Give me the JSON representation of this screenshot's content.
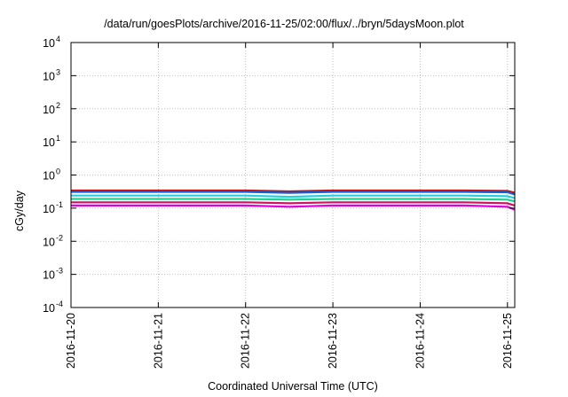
{
  "chart_data": {
    "type": "line",
    "title": "/data/run/goesPlots/archive/2016-11-25/02:00/flux/../bryn/5daysMoon.plot",
    "xlabel": "Coordinated Universal Time (UTC)",
    "ylabel": "cGy/day",
    "yscale": "log",
    "ylim": [
      0.0001,
      10000
    ],
    "xlim": [
      "2016-11-20 00:00",
      "2016-11-25 02:00"
    ],
    "grid": true,
    "x_ticks": [
      "2016-11-20",
      "2016-11-21",
      "2016-11-22",
      "2016-11-23",
      "2016-11-24",
      "2016-11-25"
    ],
    "y_ticks": [
      {
        "base": "10",
        "exp": "-4"
      },
      {
        "base": "10",
        "exp": "-3"
      },
      {
        "base": "10",
        "exp": "-2"
      },
      {
        "base": "10",
        "exp": "-1"
      },
      {
        "base": "10",
        "exp": "0"
      },
      {
        "base": "10",
        "exp": "1"
      },
      {
        "base": "10",
        "exp": "2"
      },
      {
        "base": "10",
        "exp": "3"
      },
      {
        "base": "10",
        "exp": "4"
      }
    ],
    "series": [
      {
        "color": "#e000e0",
        "x": [
          "2016-11-20 00:00",
          "2016-11-20 12:00",
          "2016-11-21 00:00",
          "2016-11-21 12:00",
          "2016-11-22 00:00",
          "2016-11-22 12:00",
          "2016-11-23 00:00",
          "2016-11-23 12:00",
          "2016-11-24 00:00",
          "2016-11-24 12:00",
          "2016-11-25 00:00",
          "2016-11-25 02:00"
        ],
        "y": [
          0.12,
          0.12,
          0.12,
          0.12,
          0.12,
          0.11,
          0.12,
          0.12,
          0.12,
          0.12,
          0.11,
          0.09
        ]
      },
      {
        "color": "#d01060",
        "x": [
          "2016-11-20 00:00",
          "2016-11-20 12:00",
          "2016-11-21 00:00",
          "2016-11-21 12:00",
          "2016-11-22 00:00",
          "2016-11-22 12:00",
          "2016-11-23 00:00",
          "2016-11-23 12:00",
          "2016-11-24 00:00",
          "2016-11-24 12:00",
          "2016-11-25 00:00",
          "2016-11-25 02:00"
        ],
        "y": [
          0.15,
          0.15,
          0.15,
          0.15,
          0.15,
          0.14,
          0.15,
          0.15,
          0.15,
          0.15,
          0.14,
          0.12
        ]
      },
      {
        "color": "#20d090",
        "x": [
          "2016-11-20 00:00",
          "2016-11-20 12:00",
          "2016-11-21 00:00",
          "2016-11-21 12:00",
          "2016-11-22 00:00",
          "2016-11-22 12:00",
          "2016-11-23 00:00",
          "2016-11-23 12:00",
          "2016-11-24 00:00",
          "2016-11-24 12:00",
          "2016-11-25 00:00",
          "2016-11-25 02:00"
        ],
        "y": [
          0.19,
          0.19,
          0.19,
          0.19,
          0.19,
          0.18,
          0.19,
          0.19,
          0.19,
          0.19,
          0.18,
          0.16
        ]
      },
      {
        "color": "#20d0e0",
        "x": [
          "2016-11-20 00:00",
          "2016-11-20 12:00",
          "2016-11-21 00:00",
          "2016-11-21 12:00",
          "2016-11-22 00:00",
          "2016-11-22 12:00",
          "2016-11-23 00:00",
          "2016-11-23 12:00",
          "2016-11-24 00:00",
          "2016-11-24 12:00",
          "2016-11-25 00:00",
          "2016-11-25 02:00"
        ],
        "y": [
          0.24,
          0.24,
          0.24,
          0.24,
          0.24,
          0.22,
          0.24,
          0.24,
          0.24,
          0.24,
          0.23,
          0.2
        ]
      },
      {
        "color": "#c01010",
        "x": [
          "2016-11-20 00:00",
          "2016-11-20 12:00",
          "2016-11-21 00:00",
          "2016-11-21 12:00",
          "2016-11-22 00:00",
          "2016-11-22 12:00",
          "2016-11-23 00:00",
          "2016-11-23 12:00",
          "2016-11-24 00:00",
          "2016-11-24 12:00",
          "2016-11-25 00:00",
          "2016-11-25 02:00"
        ],
        "y": [
          0.34,
          0.34,
          0.34,
          0.34,
          0.34,
          0.32,
          0.34,
          0.34,
          0.34,
          0.34,
          0.33,
          0.29
        ]
      },
      {
        "color": "#1560d8",
        "x": [
          "2016-11-20 00:00",
          "2016-11-20 12:00",
          "2016-11-21 00:00",
          "2016-11-21 12:00",
          "2016-11-22 00:00",
          "2016-11-22 12:00",
          "2016-11-23 00:00",
          "2016-11-23 12:00",
          "2016-11-24 00:00",
          "2016-11-24 12:00",
          "2016-11-25 00:00",
          "2016-11-25 02:00"
        ],
        "y": [
          0.31,
          0.31,
          0.31,
          0.31,
          0.31,
          0.29,
          0.31,
          0.31,
          0.31,
          0.31,
          0.3,
          0.26
        ]
      }
    ]
  }
}
